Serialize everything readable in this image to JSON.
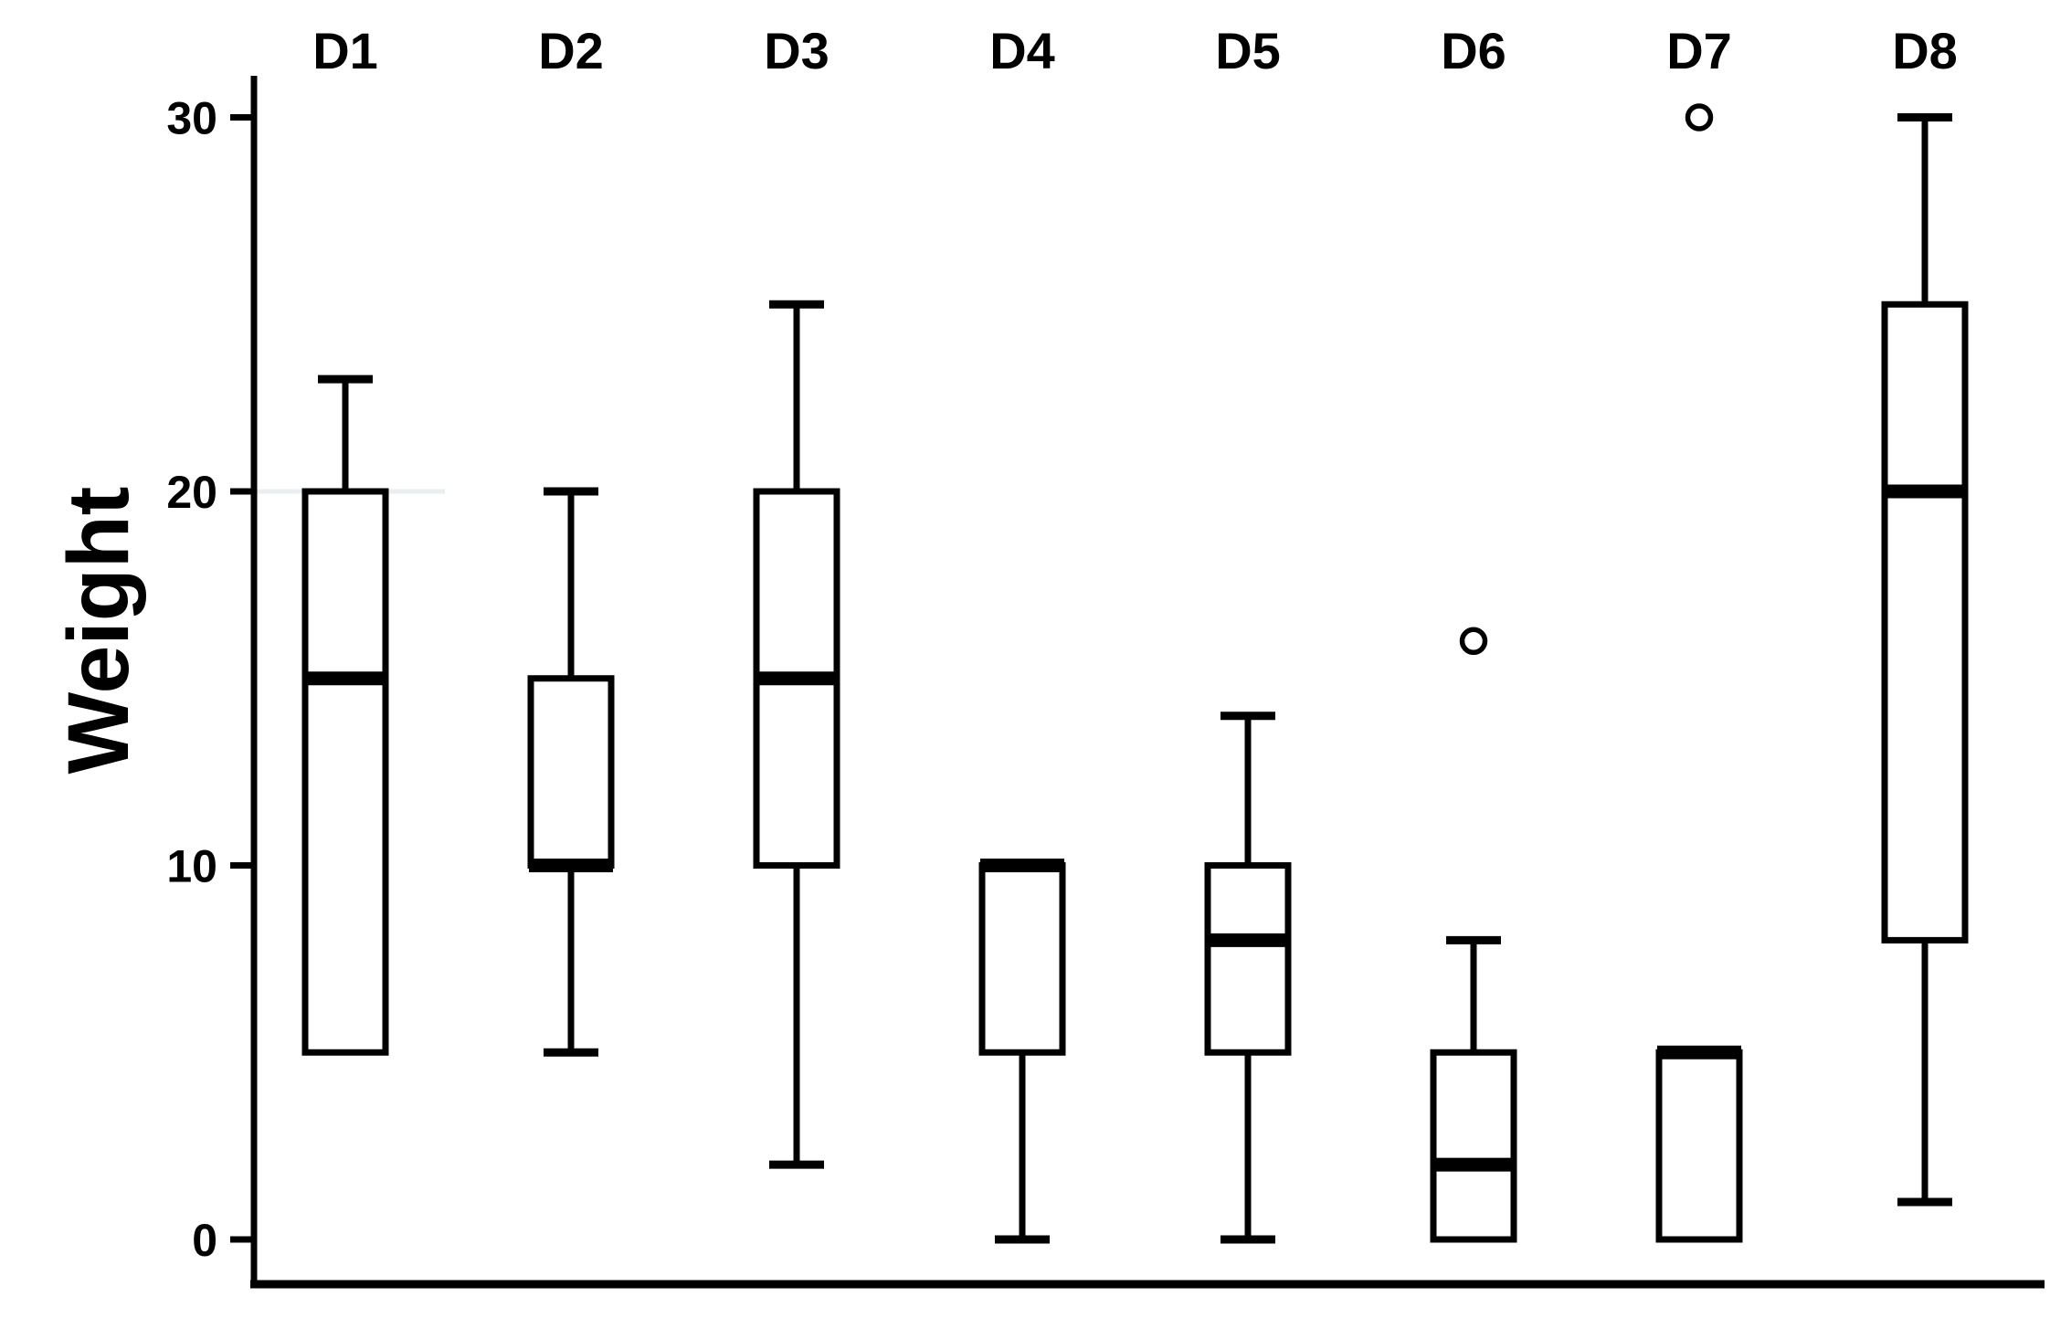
{
  "page": {
    "background": "#ffffff"
  },
  "chart_data": {
    "type": "boxplot",
    "title": "",
    "xlabel": "",
    "ylabel": "Weight",
    "categories": [
      "D1",
      "D2",
      "D3",
      "D4",
      "D5",
      "D6",
      "D7",
      "D8"
    ],
    "y_ticks": [
      0,
      10,
      20,
      30
    ],
    "ylim": [
      0,
      31
    ],
    "grid": "off",
    "legend": "none",
    "partial_gridline_y": 20,
    "series": [
      {
        "name": "D1",
        "min": 5,
        "q1": 5,
        "median": 15,
        "q3": 20,
        "max": 23,
        "outliers": []
      },
      {
        "name": "D2",
        "min": 5,
        "q1": 10,
        "median": 10,
        "q3": 15,
        "max": 20,
        "outliers": []
      },
      {
        "name": "D3",
        "min": 2,
        "q1": 10,
        "median": 15,
        "q3": 20,
        "max": 25,
        "outliers": []
      },
      {
        "name": "D4",
        "min": 0,
        "q1": 5,
        "median": 10,
        "q3": 10,
        "max": 10,
        "outliers": []
      },
      {
        "name": "D5",
        "min": 0,
        "q1": 5,
        "median": 8,
        "q3": 10,
        "max": 14,
        "outliers": []
      },
      {
        "name": "D6",
        "min": 0,
        "q1": 0,
        "median": 2,
        "q3": 5,
        "max": 8,
        "outliers": [
          16
        ]
      },
      {
        "name": "D7",
        "min": 0,
        "q1": 0,
        "median": 5,
        "q3": 5,
        "max": 5,
        "outliers": [
          30
        ]
      },
      {
        "name": "D8",
        "min": 1,
        "q1": 8,
        "median": 20,
        "q3": 25,
        "max": 30,
        "outliers": []
      }
    ],
    "colors": {
      "stroke": "#000000",
      "box_fill": "#ffffff",
      "background": "#ffffff",
      "partial_gridline": "#e9eef1"
    }
  }
}
